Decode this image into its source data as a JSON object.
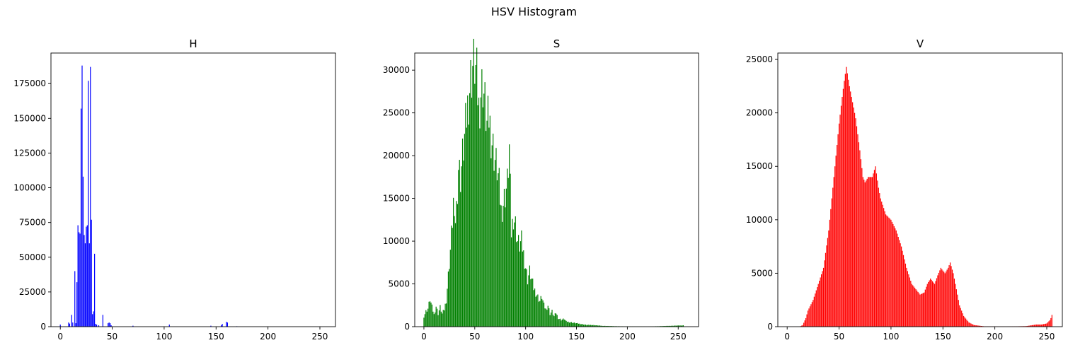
{
  "figure": {
    "title": "HSV Histogram"
  },
  "chart_data": [
    {
      "type": "bar",
      "title": "H",
      "color": "#0000ff",
      "xlim": [
        -9,
        265
      ],
      "ylim": [
        0,
        197000
      ],
      "xticks": [
        0,
        50,
        100,
        150,
        200,
        250
      ],
      "yticks": [
        0,
        25000,
        50000,
        75000,
        100000,
        125000,
        150000,
        175000
      ],
      "grid": false,
      "bins": 256,
      "points": [
        [
          0,
          1500
        ],
        [
          8,
          3000
        ],
        [
          9,
          2200
        ],
        [
          11,
          8500
        ],
        [
          12,
          3000
        ],
        [
          14,
          40000
        ],
        [
          15,
          2500
        ],
        [
          16,
          32000
        ],
        [
          17,
          73000
        ],
        [
          18,
          68000
        ],
        [
          19,
          67000
        ],
        [
          20,
          157000
        ],
        [
          21,
          188000
        ],
        [
          22,
          108000
        ],
        [
          23,
          66000
        ],
        [
          24,
          60000
        ],
        [
          25,
          72000
        ],
        [
          26,
          73000
        ],
        [
          27,
          177000
        ],
        [
          28,
          60000
        ],
        [
          29,
          187000
        ],
        [
          30,
          77000
        ],
        [
          31,
          9000
        ],
        [
          32,
          11000
        ],
        [
          33,
          52500
        ],
        [
          34,
          2000
        ],
        [
          35,
          1500
        ],
        [
          37,
          1000
        ],
        [
          41,
          8500
        ],
        [
          46,
          2500
        ],
        [
          47,
          3000
        ],
        [
          48,
          2500
        ],
        [
          49,
          1000
        ],
        [
          70,
          700
        ],
        [
          105,
          1500
        ],
        [
          145,
          700
        ],
        [
          155,
          1000
        ],
        [
          156,
          2000
        ],
        [
          160,
          3500
        ],
        [
          161,
          3000
        ],
        [
          170,
          300
        ]
      ]
    },
    {
      "type": "bar",
      "title": "S",
      "color": "#008000",
      "xlim": [
        -9,
        270
      ],
      "ylim": [
        0,
        32000
      ],
      "xticks": [
        0,
        50,
        100,
        150,
        200,
        250
      ],
      "yticks": [
        0,
        5000,
        10000,
        15000,
        20000,
        25000,
        30000
      ],
      "grid": false,
      "bins": 256,
      "points": [
        [
          0,
          1200
        ],
        [
          2,
          1800
        ],
        [
          4,
          2100
        ],
        [
          6,
          3200
        ],
        [
          8,
          2300
        ],
        [
          10,
          1400
        ],
        [
          12,
          2400
        ],
        [
          14,
          1500
        ],
        [
          16,
          2300
        ],
        [
          18,
          1500
        ],
        [
          20,
          2000
        ],
        [
          22,
          3100
        ],
        [
          24,
          6000
        ],
        [
          26,
          9000
        ],
        [
          28,
          12500
        ],
        [
          29,
          14700
        ],
        [
          30,
          11500
        ],
        [
          32,
          14000
        ],
        [
          34,
          18800
        ],
        [
          36,
          17500
        ],
        [
          38,
          20000
        ],
        [
          40,
          22000
        ],
        [
          42,
          24500
        ],
        [
          44,
          27000
        ],
        [
          46,
          29000
        ],
        [
          48,
          30500
        ],
        [
          50,
          30700
        ],
        [
          52,
          29000
        ],
        [
          54,
          25500
        ],
        [
          56,
          27500
        ],
        [
          58,
          28500
        ],
        [
          60,
          26000
        ],
        [
          62,
          23500
        ],
        [
          64,
          24500
        ],
        [
          66,
          22500
        ],
        [
          68,
          21000
        ],
        [
          70,
          19500
        ],
        [
          72,
          18500
        ],
        [
          74,
          16500
        ],
        [
          76,
          13500
        ],
        [
          78,
          14500
        ],
        [
          80,
          15500
        ],
        [
          82,
          16800
        ],
        [
          84,
          20800
        ],
        [
          86,
          11000
        ],
        [
          88,
          13000
        ],
        [
          90,
          12000
        ],
        [
          92,
          10000
        ],
        [
          94,
          9500
        ],
        [
          96,
          10000
        ],
        [
          98,
          8500
        ],
        [
          100,
          7000
        ],
        [
          102,
          5500
        ],
        [
          104,
          6500
        ],
        [
          106,
          5500
        ],
        [
          108,
          4500
        ],
        [
          110,
          4000
        ],
        [
          112,
          3500
        ],
        [
          114,
          3000
        ],
        [
          116,
          3500
        ],
        [
          118,
          2500
        ],
        [
          120,
          2000
        ],
        [
          122,
          2500
        ],
        [
          124,
          1500
        ],
        [
          126,
          1800
        ],
        [
          128,
          1200
        ],
        [
          130,
          1600
        ],
        [
          132,
          1000
        ],
        [
          135,
          800
        ],
        [
          138,
          900
        ],
        [
          140,
          600
        ],
        [
          145,
          500
        ],
        [
          150,
          400
        ],
        [
          155,
          300
        ],
        [
          160,
          200
        ],
        [
          165,
          200
        ],
        [
          170,
          150
        ],
        [
          175,
          100
        ],
        [
          180,
          80
        ],
        [
          190,
          50
        ],
        [
          200,
          30
        ],
        [
          210,
          20
        ],
        [
          220,
          10
        ],
        [
          255,
          150
        ]
      ]
    },
    {
      "type": "area",
      "title": "V",
      "color": "#ff0000",
      "xlim": [
        -9,
        265
      ],
      "ylim": [
        0,
        25600
      ],
      "xticks": [
        0,
        50,
        100,
        150,
        200,
        250
      ],
      "yticks": [
        0,
        5000,
        10000,
        15000,
        20000,
        25000
      ],
      "grid": false,
      "bins": 256,
      "points": [
        [
          0,
          0
        ],
        [
          12,
          0
        ],
        [
          15,
          150
        ],
        [
          18,
          800
        ],
        [
          20,
          1500
        ],
        [
          25,
          2500
        ],
        [
          30,
          4000
        ],
        [
          35,
          5500
        ],
        [
          40,
          9000
        ],
        [
          45,
          14000
        ],
        [
          48,
          17000
        ],
        [
          50,
          19000
        ],
        [
          53,
          21500
        ],
        [
          55,
          23000
        ],
        [
          57,
          24300
        ],
        [
          60,
          22500
        ],
        [
          63,
          21000
        ],
        [
          66,
          19500
        ],
        [
          70,
          16500
        ],
        [
          73,
          14000
        ],
        [
          75,
          13500
        ],
        [
          78,
          14000
        ],
        [
          82,
          14000
        ],
        [
          85,
          15000
        ],
        [
          88,
          13000
        ],
        [
          90,
          12000
        ],
        [
          95,
          10500
        ],
        [
          100,
          10000
        ],
        [
          105,
          9000
        ],
        [
          110,
          7500
        ],
        [
          115,
          5500
        ],
        [
          120,
          4000
        ],
        [
          124,
          3500
        ],
        [
          128,
          3000
        ],
        [
          132,
          3200
        ],
        [
          135,
          4000
        ],
        [
          138,
          4500
        ],
        [
          142,
          4000
        ],
        [
          145,
          4800
        ],
        [
          148,
          5500
        ],
        [
          152,
          5000
        ],
        [
          155,
          5500
        ],
        [
          157,
          6000
        ],
        [
          160,
          5000
        ],
        [
          163,
          3500
        ],
        [
          166,
          2000
        ],
        [
          170,
          1000
        ],
        [
          175,
          400
        ],
        [
          180,
          150
        ],
        [
          190,
          30
        ],
        [
          210,
          10
        ],
        [
          230,
          50
        ],
        [
          240,
          200
        ],
        [
          245,
          200
        ],
        [
          250,
          300
        ],
        [
          253,
          600
        ],
        [
          254,
          800
        ],
        [
          255,
          1100
        ]
      ]
    }
  ]
}
